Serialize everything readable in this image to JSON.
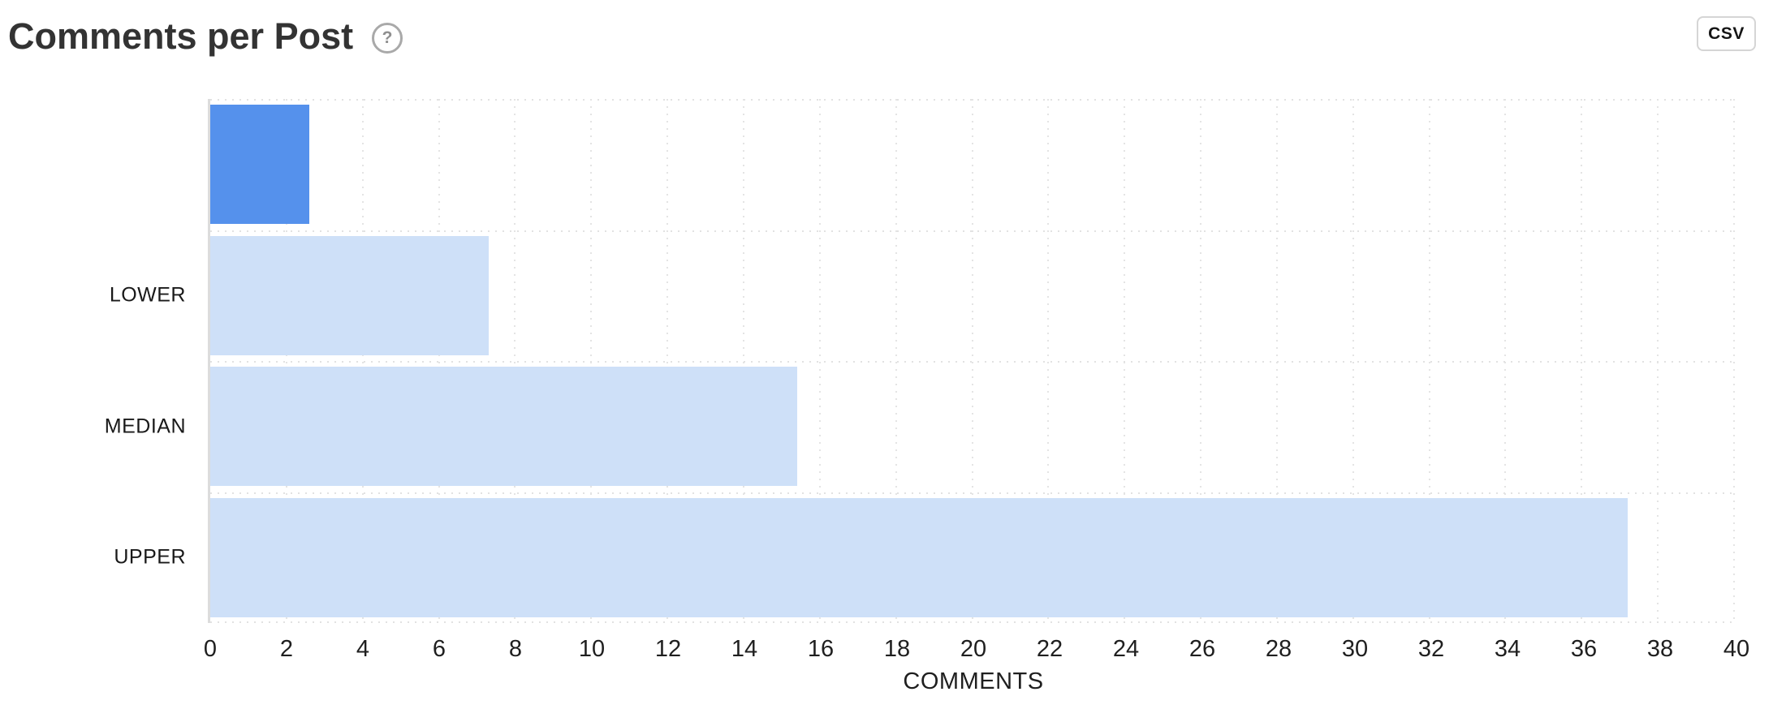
{
  "header": {
    "title": "Comments per Post",
    "help_icon": "?",
    "csv_button_label": "CSV"
  },
  "chart_data": {
    "type": "bar",
    "orientation": "horizontal",
    "title": "Comments per Post",
    "xlabel": "COMMENTS",
    "categories": [
      "",
      "LOWER",
      "MEDIAN",
      "UPPER"
    ],
    "values": [
      2.6,
      7.3,
      15.4,
      37.2
    ],
    "bar_colors": [
      "#5591ec",
      "#cee0f8",
      "#cee0f8",
      "#cee0f8"
    ],
    "highlight_color": "#5591ec",
    "benchmark_color": "#cee0f8",
    "xlim": [
      0,
      40
    ],
    "x_tick_step": 2,
    "x_ticks": [
      0,
      2,
      4,
      6,
      8,
      10,
      12,
      14,
      16,
      18,
      20,
      22,
      24,
      26,
      28,
      30,
      32,
      34,
      36,
      38,
      40
    ],
    "grid": "dotted",
    "legend": "none"
  }
}
